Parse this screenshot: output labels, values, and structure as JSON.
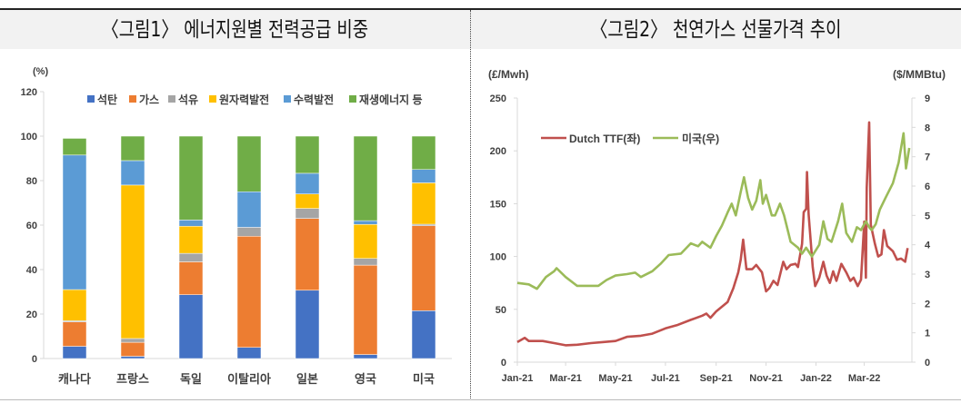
{
  "titles": {
    "fig1": "〈그림1〉 에너지원별 전력공급 비중",
    "fig2": "〈그림2〉 천연가스 선물가격 추이"
  },
  "chart_data": [
    {
      "type": "bar",
      "stacked": true,
      "title": "〈그림1〉 에너지원별 전력공급 비중",
      "ylabel": "(%)",
      "ylim": [
        0,
        120
      ],
      "yticks": [
        "0",
        "20",
        "40",
        "60",
        "80",
        "100",
        "120"
      ],
      "categories": [
        "캐나다",
        "프랑스",
        "독일",
        "이탈리아",
        "일본",
        "영국",
        "미국"
      ],
      "legend_position": "top",
      "series": [
        {
          "name": "석탄",
          "color": "#4472c4",
          "values": [
            5.5,
            1.0,
            28.7,
            5.0,
            30.7,
            1.8,
            21.5
          ]
        },
        {
          "name": "가스",
          "color": "#ed7d31",
          "values": [
            11.0,
            6.3,
            14.8,
            50.0,
            32.3,
            40.2,
            38.2
          ]
        },
        {
          "name": "석유",
          "color": "#a5a5a5",
          "values": [
            0.5,
            1.7,
            3.8,
            4.0,
            4.5,
            3.0,
            0.7
          ]
        },
        {
          "name": "원자력발전",
          "color": "#ffc000",
          "values": [
            14.0,
            69.0,
            12.2,
            0.0,
            6.5,
            15.3,
            18.6
          ]
        },
        {
          "name": "수력발전",
          "color": "#5b9bd5",
          "values": [
            60.5,
            11.0,
            2.8,
            16.0,
            9.3,
            1.7,
            6.0
          ]
        },
        {
          "name": "재생에너지 등",
          "color": "#70ad47",
          "values": [
            7.5,
            11.0,
            37.7,
            25.0,
            16.7,
            38.0,
            15.0
          ]
        }
      ]
    },
    {
      "type": "line",
      "title": "〈그림2〉 천연가스 선물가격 추이",
      "ylabel": "(£/Mwh)",
      "y2label": "($/MMBtu)",
      "ylim": [
        0,
        250
      ],
      "y2lim": [
        0,
        9
      ],
      "yticks": [
        "0",
        "50",
        "100",
        "150",
        "200",
        "250"
      ],
      "y2ticks": [
        "0",
        "1",
        "2",
        "3",
        "4",
        "5",
        "6",
        "7",
        "8",
        "9"
      ],
      "xticks": [
        [
          "2021-01-01",
          "Jan-21"
        ],
        [
          "2021-03-01",
          "Mar-21"
        ],
        [
          "2021-05-01",
          "May-21"
        ],
        [
          "2021-07-01",
          "Jul-21"
        ],
        [
          "2021-09-01",
          "Sep-21"
        ],
        [
          "2021-11-01",
          "Nov-21"
        ],
        [
          "2022-01-01",
          "Jan-22"
        ],
        [
          "2022-03-01",
          "Mar-22"
        ]
      ],
      "legend_position": "top-left",
      "series": [
        {
          "name": "Dutch TTF(좌)",
          "axis": "left",
          "color": "#c0504d",
          "points": [
            [
              "2021-01-01",
              19
            ],
            [
              "2021-01-10",
              23
            ],
            [
              "2021-01-15",
              20
            ],
            [
              "2021-02-01",
              20
            ],
            [
              "2021-02-15",
              18
            ],
            [
              "2021-03-01",
              16
            ],
            [
              "2021-03-15",
              16.5
            ],
            [
              "2021-04-01",
              18
            ],
            [
              "2021-04-15",
              19
            ],
            [
              "2021-05-01",
              20
            ],
            [
              "2021-05-15",
              24
            ],
            [
              "2021-06-01",
              25
            ],
            [
              "2021-06-15",
              27
            ],
            [
              "2021-07-01",
              32
            ],
            [
              "2021-07-15",
              35
            ],
            [
              "2021-08-01",
              40
            ],
            [
              "2021-08-15",
              44
            ],
            [
              "2021-08-20",
              46
            ],
            [
              "2021-08-25",
              42
            ],
            [
              "2021-09-01",
              48
            ],
            [
              "2021-09-15",
              57
            ],
            [
              "2021-09-22",
              70
            ],
            [
              "2021-09-28",
              85
            ],
            [
              "2021-10-01",
              97
            ],
            [
              "2021-10-04",
              116
            ],
            [
              "2021-10-08",
              88
            ],
            [
              "2021-10-15",
              88
            ],
            [
              "2021-10-20",
              92
            ],
            [
              "2021-10-27",
              85
            ],
            [
              "2021-11-01",
              67
            ],
            [
              "2021-11-05",
              70
            ],
            [
              "2021-11-10",
              77
            ],
            [
              "2021-11-15",
              73
            ],
            [
              "2021-11-22",
              95
            ],
            [
              "2021-11-26",
              88
            ],
            [
              "2021-12-01",
              92
            ],
            [
              "2021-12-07",
              93
            ],
            [
              "2021-12-10",
              90
            ],
            [
              "2021-12-15",
              112
            ],
            [
              "2021-12-17",
              142
            ],
            [
              "2021-12-20",
              145
            ],
            [
              "2021-12-21",
              180
            ],
            [
              "2021-12-23",
              140
            ],
            [
              "2021-12-28",
              90
            ],
            [
              "2021-12-31",
              72
            ],
            [
              "2022-01-05",
              80
            ],
            [
              "2022-01-10",
              95
            ],
            [
              "2022-01-14",
              82
            ],
            [
              "2022-01-18",
              75
            ],
            [
              "2022-01-22",
              86
            ],
            [
              "2022-01-26",
              77
            ],
            [
              "2022-02-01",
              93
            ],
            [
              "2022-02-07",
              85
            ],
            [
              "2022-02-12",
              77
            ],
            [
              "2022-02-16",
              80
            ],
            [
              "2022-02-21",
              72
            ],
            [
              "2022-02-25",
              78
            ],
            [
              "2022-03-01",
              133
            ],
            [
              "2022-03-03",
              80
            ],
            [
              "2022-03-04",
              165
            ],
            [
              "2022-03-07",
              227
            ],
            [
              "2022-03-09",
              130
            ],
            [
              "2022-03-14",
              112
            ],
            [
              "2022-03-18",
              100
            ],
            [
              "2022-03-22",
              102
            ],
            [
              "2022-03-25",
              125
            ],
            [
              "2022-03-29",
              110
            ],
            [
              "2022-04-05",
              105
            ],
            [
              "2022-04-10",
              97
            ],
            [
              "2022-04-15",
              98
            ],
            [
              "2022-04-20",
              95
            ],
            [
              "2022-04-23",
              108
            ]
          ]
        },
        {
          "name": "미국(우)",
          "axis": "right",
          "color": "#9bbb59",
          "points": [
            [
              "2021-01-01",
              2.7
            ],
            [
              "2021-01-15",
              2.65
            ],
            [
              "2021-01-25",
              2.5
            ],
            [
              "2021-02-05",
              2.9
            ],
            [
              "2021-02-15",
              3.1
            ],
            [
              "2021-02-18",
              3.2
            ],
            [
              "2021-03-01",
              2.9
            ],
            [
              "2021-03-15",
              2.6
            ],
            [
              "2021-03-31",
              2.6
            ],
            [
              "2021-04-10",
              2.6
            ],
            [
              "2021-04-20",
              2.8
            ],
            [
              "2021-05-01",
              2.95
            ],
            [
              "2021-05-15",
              3.0
            ],
            [
              "2021-05-25",
              3.05
            ],
            [
              "2021-06-01",
              2.9
            ],
            [
              "2021-06-15",
              3.1
            ],
            [
              "2021-06-25",
              3.35
            ],
            [
              "2021-07-05",
              3.65
            ],
            [
              "2021-07-20",
              3.7
            ],
            [
              "2021-08-01",
              4.05
            ],
            [
              "2021-08-10",
              3.95
            ],
            [
              "2021-08-15",
              4.1
            ],
            [
              "2021-08-25",
              3.9
            ],
            [
              "2021-09-01",
              4.3
            ],
            [
              "2021-09-08",
              4.65
            ],
            [
              "2021-09-15",
              5.1
            ],
            [
              "2021-09-20",
              5.4
            ],
            [
              "2021-09-25",
              5.0
            ],
            [
              "2021-10-01",
              5.8
            ],
            [
              "2021-10-05",
              6.3
            ],
            [
              "2021-10-10",
              5.6
            ],
            [
              "2021-10-15",
              5.2
            ],
            [
              "2021-10-20",
              5.5
            ],
            [
              "2021-10-25",
              6.2
            ],
            [
              "2021-10-28",
              5.4
            ],
            [
              "2021-11-01",
              5.7
            ],
            [
              "2021-11-08",
              5.0
            ],
            [
              "2021-11-12",
              5.0
            ],
            [
              "2021-11-18",
              5.4
            ],
            [
              "2021-11-23",
              5.0
            ],
            [
              "2021-12-01",
              4.1
            ],
            [
              "2021-12-10",
              3.9
            ],
            [
              "2021-12-15",
              3.7
            ],
            [
              "2021-12-20",
              3.9
            ],
            [
              "2021-12-27",
              3.6
            ],
            [
              "2022-01-05",
              4.0
            ],
            [
              "2022-01-10",
              4.8
            ],
            [
              "2022-01-15",
              4.2
            ],
            [
              "2022-01-20",
              4.1
            ],
            [
              "2022-01-28",
              4.8
            ],
            [
              "2022-02-02",
              5.4
            ],
            [
              "2022-02-07",
              4.4
            ],
            [
              "2022-02-14",
              4.1
            ],
            [
              "2022-02-20",
              4.6
            ],
            [
              "2022-02-25",
              4.5
            ],
            [
              "2022-03-03",
              4.8
            ],
            [
              "2022-03-07",
              4.6
            ],
            [
              "2022-03-10",
              4.5
            ],
            [
              "2022-03-15",
              4.7
            ],
            [
              "2022-03-20",
              5.2
            ],
            [
              "2022-03-27",
              5.6
            ],
            [
              "2022-04-05",
              6.1
            ],
            [
              "2022-04-12",
              6.8
            ],
            [
              "2022-04-18",
              7.8
            ],
            [
              "2022-04-21",
              6.6
            ],
            [
              "2022-04-25",
              7.3
            ]
          ]
        }
      ]
    }
  ]
}
